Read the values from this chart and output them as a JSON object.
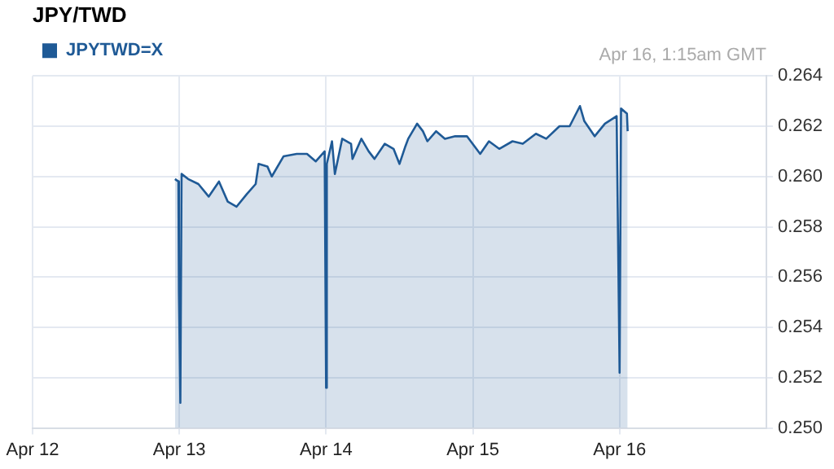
{
  "chart_data": {
    "type": "area",
    "title": "JPY/TWD",
    "annotations": [
      "Apr 16, 1:15am GMT"
    ],
    "series": [
      {
        "name": "JPYTWD=X",
        "color": "#1f5a96",
        "x": [
          "--04-12T23:17",
          "--04-12T23:51",
          "--04-12T23:56",
          "--04-13T00:10",
          "--04-13T00:22",
          "--04-13T01:26",
          "--04-13T03:07",
          "--04-13T04:48",
          "--04-13T06:29",
          "--04-13T07:55",
          "--04-13T09:22",
          "--04-13T11:02",
          "--04-13T12:29",
          "--04-13T12:58",
          "--04-13T14:24",
          "--04-13T15:07",
          "--04-13T17:02",
          "--04-13T19:12",
          "--04-13T20:53",
          "--04-13T22:19",
          "--04-13T23:46",
          "--04-14T00:00",
          "--04-14T00:07",
          "--04-14T00:58",
          "--04-14T01:26",
          "--04-14T02:38",
          "--04-14T04:05",
          "--04-14T04:19",
          "--04-14T05:46",
          "--04-14T06:58",
          "--04-14T07:55",
          "--04-14T09:36",
          "--04-14T11:02",
          "--04-14T12:00",
          "--04-14T12:58",
          "--04-14T13:26",
          "--04-14T14:53",
          "--04-14T15:50",
          "--04-14T16:34",
          "--04-14T18:00",
          "--04-14T19:26",
          "--04-14T21:07",
          "--04-14T23:02",
          "--04-15T01:12",
          "--04-15T02:38",
          "--04-15T04:19",
          "--04-15T06:29",
          "--04-15T08:10",
          "--04-15T10:19",
          "--04-15T12:00",
          "--04-15T14:10",
          "--04-15T15:50",
          "--04-15T17:31",
          "--04-15T18:14",
          "--04-15T19:55",
          "--04-15T21:36",
          "--04-15T23:31",
          "--04-16T00:00",
          "--04-16T00:14",
          "--04-16T01:12",
          "--04-16T01:19"
        ],
        "values": [
          0.2599,
          0.2598,
          0.2554,
          0.251,
          0.2601,
          0.2599,
          0.2597,
          0.2592,
          0.2598,
          0.259,
          0.2588,
          0.2593,
          0.2597,
          0.2605,
          0.2604,
          0.26,
          0.2608,
          0.2609,
          0.2609,
          0.2606,
          0.261,
          0.2516,
          0.2605,
          0.2614,
          0.2601,
          0.2615,
          0.2613,
          0.2607,
          0.2615,
          0.261,
          0.2607,
          0.2613,
          0.2611,
          0.2605,
          0.2612,
          0.2615,
          0.2621,
          0.2618,
          0.2614,
          0.2618,
          0.2615,
          0.2616,
          0.2616,
          0.2609,
          0.2614,
          0.2611,
          0.2614,
          0.2613,
          0.2617,
          0.2615,
          0.262,
          0.262,
          0.2628,
          0.2622,
          0.2616,
          0.2621,
          0.2624,
          0.2522,
          0.2627,
          0.2625,
          0.2618
        ]
      }
    ],
    "xlim": [
      "--04-12",
      "--04-17"
    ],
    "xticks": [
      {
        "value": "--04-12",
        "label": "Apr 12"
      },
      {
        "value": "--04-13",
        "label": "Apr 13"
      },
      {
        "value": "--04-14",
        "label": "Apr 14"
      },
      {
        "value": "--04-15",
        "label": "Apr 15"
      },
      {
        "value": "--04-16",
        "label": "Apr 16"
      }
    ],
    "ylim": [
      0.25,
      0.264
    ],
    "yticks": [
      {
        "value": 0.25,
        "label": "0.250"
      },
      {
        "value": 0.252,
        "label": "0.252"
      },
      {
        "value": 0.254,
        "label": "0.254"
      },
      {
        "value": 0.256,
        "label": "0.256"
      },
      {
        "value": 0.258,
        "label": "0.258"
      },
      {
        "value": 0.26,
        "label": "0.260"
      },
      {
        "value": 0.262,
        "label": "0.262"
      },
      {
        "value": 0.264,
        "label": "0.264"
      }
    ],
    "grid": true,
    "legend": "top left"
  }
}
